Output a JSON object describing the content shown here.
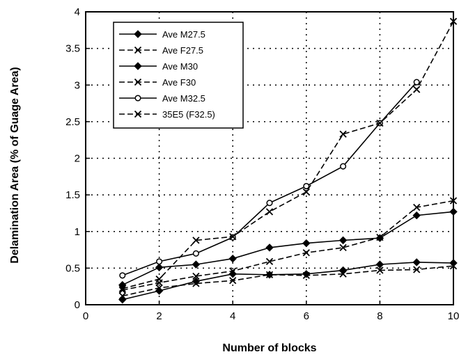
{
  "chart_data": {
    "type": "line",
    "title": "",
    "xlabel": "Number of blocks",
    "ylabel": "Delamination Area (% of Guage Area)",
    "xlim": [
      0,
      10
    ],
    "ylim": [
      0,
      4
    ],
    "x_ticks": [
      "0",
      "2",
      "4",
      "6",
      "8",
      "10"
    ],
    "y_ticks": [
      "0",
      "0.5",
      "1",
      "1.5",
      "2",
      "2.5",
      "3",
      "3.5",
      "4"
    ],
    "grid": true,
    "legend_position": "top-left",
    "series": [
      {
        "name": "Ave M27.5",
        "marker": "diamond",
        "dash": "solid",
        "x": [
          1,
          2,
          3,
          4,
          5,
          6,
          7,
          8,
          9,
          10
        ],
        "y": [
          0.07,
          0.19,
          0.32,
          0.42,
          0.41,
          0.42,
          0.47,
          0.55,
          0.58,
          0.57
        ]
      },
      {
        "name": "Ave F27.5",
        "marker": "x",
        "dash": "dashed",
        "x": [
          1,
          2,
          3,
          4,
          5,
          6,
          7,
          8,
          9,
          10
        ],
        "y": [
          0.12,
          0.23,
          0.29,
          0.33,
          0.41,
          0.4,
          0.42,
          0.47,
          0.48,
          0.53
        ]
      },
      {
        "name": "Ave M30",
        "marker": "diamond",
        "dash": "solid",
        "x": [
          1,
          2,
          3,
          4,
          5,
          6,
          7,
          8,
          9,
          10
        ],
        "y": [
          0.27,
          0.51,
          0.55,
          0.63,
          0.78,
          0.84,
          0.88,
          0.91,
          1.22,
          1.27
        ]
      },
      {
        "name": "Ave F30",
        "marker": "x",
        "dash": "dashed",
        "x": [
          1,
          2,
          3,
          4,
          5,
          6,
          7,
          8,
          9,
          10
        ],
        "y": [
          0.2,
          0.3,
          0.39,
          0.46,
          0.59,
          0.71,
          0.78,
          0.92,
          1.33,
          1.42
        ]
      },
      {
        "name": "Ave M32.5",
        "marker": "circle",
        "dash": "solid",
        "x": [
          1,
          2,
          3,
          4,
          5,
          6,
          7,
          8,
          9
        ],
        "y": [
          0.4,
          0.59,
          0.7,
          0.92,
          1.39,
          1.62,
          1.89,
          2.48,
          3.04
        ]
      },
      {
        "name": "35E5 (F32.5)",
        "marker": "x",
        "dash": "dashed",
        "x": [
          1,
          2,
          3,
          4,
          5,
          6,
          7,
          8,
          9,
          10
        ],
        "y": [
          0.22,
          0.35,
          0.88,
          0.93,
          1.27,
          1.54,
          2.33,
          2.48,
          2.94,
          3.87
        ]
      }
    ]
  }
}
